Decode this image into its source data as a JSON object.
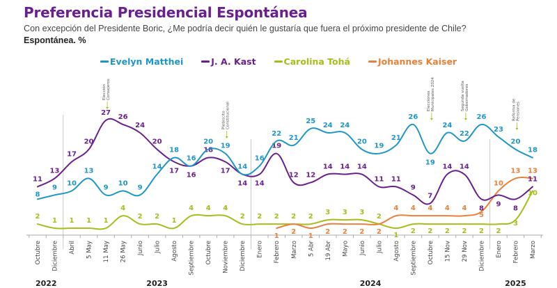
{
  "chart_data": {
    "type": "line",
    "title": "Preferencia Presidencial Espontánea",
    "subtitle": "Con excepción del Presidente Boric, ¿Me podría decir quién le gustaría que fuera el próximo presidente de Chile?",
    "unit_label": "Espontánea. %",
    "xlabel": "",
    "ylabel": "",
    "ylim": [
      0,
      30
    ],
    "grid": false,
    "legend_position": "top-center",
    "categories": [
      "Octubre",
      "Diciembre",
      "Abril",
      "5 May",
      "11 May",
      "26 May",
      "Junio",
      "Julio",
      "Agosto",
      "Septiembre",
      "Octubre",
      "Noviembre",
      "Diciembre",
      "Enero",
      "Febrero",
      "Marzo",
      "5 Abr",
      "19 Abr",
      "Mayo",
      "Junio",
      "Julio",
      "Agosto",
      "Septiembre",
      "Octubre",
      "15 Nov",
      "29 Nov",
      "Diciembre",
      "Enero",
      "Febrero",
      "Marzo"
    ],
    "year_groups": [
      {
        "label": "2022",
        "start": 0,
        "end": 1
      },
      {
        "label": "2023",
        "start": 2,
        "end": 12
      },
      {
        "label": "2024",
        "start": 13,
        "end": 26
      },
      {
        "label": "2025",
        "start": 27,
        "end": 29
      }
    ],
    "series": [
      {
        "name": "Evelyn Matthei",
        "color": "#1e96c8",
        "values": [
          8,
          9,
          10,
          13,
          9,
          10,
          9,
          14,
          18,
          16,
          20,
          19,
          14,
          16,
          22,
          21,
          25,
          24,
          24,
          20,
          19,
          21,
          26,
          19,
          24,
          22,
          26,
          23,
          20,
          18
        ]
      },
      {
        "name": "J. A. Kast",
        "color": "#6a1f8f",
        "values": [
          11,
          13,
          17,
          20,
          27,
          26,
          24,
          20,
          17,
          16,
          18,
          17,
          14,
          14,
          19,
          12,
          12,
          14,
          14,
          14,
          11,
          11,
          9,
          7,
          14,
          14,
          8,
          9,
          8,
          11
        ]
      },
      {
        "name": "Carolina Tohá",
        "color": "#a8bd1a",
        "values": [
          2,
          1,
          1,
          1,
          1,
          4,
          2,
          2,
          1,
          4,
          4,
          4,
          2,
          2,
          2,
          2,
          2,
          3,
          3,
          3,
          2,
          1,
          2,
          2,
          2,
          2,
          2,
          2,
          3,
          10
        ]
      },
      {
        "name": "Johannes Kaiser",
        "color": "#e8813a",
        "values": [
          null,
          null,
          null,
          null,
          null,
          null,
          null,
          null,
          null,
          null,
          null,
          null,
          null,
          null,
          1,
          2,
          1,
          2,
          2,
          2,
          2,
          4,
          4,
          4,
          4,
          4,
          5,
          10,
          13,
          13
        ]
      }
    ],
    "annotations": [
      {
        "at_index": 4,
        "lines": [
          "Elección",
          "Consejeros"
        ]
      },
      {
        "at_index": 11,
        "lines": [
          "Plebiscito",
          "Constitucional"
        ]
      },
      {
        "at_index": 23,
        "lines": [
          "Elecciones",
          "Municipales 2024"
        ]
      },
      {
        "at_index": 25,
        "lines": [
          "Segunda vuelta",
          "Gobernadores"
        ]
      },
      {
        "at_index": 28,
        "lines": [
          "Reforma de",
          "Pensiones"
        ]
      }
    ]
  }
}
